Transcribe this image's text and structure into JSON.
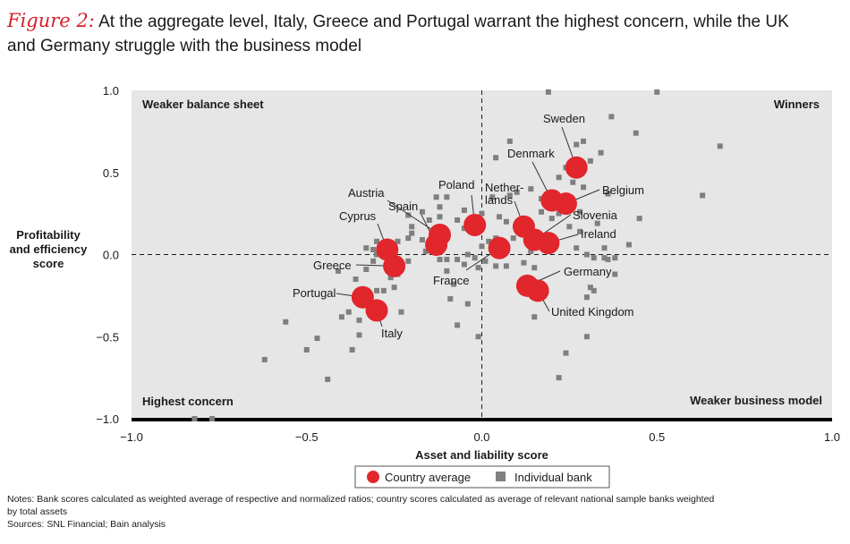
{
  "figure": {
    "label": "Figure 2:",
    "title_line1": "At the aggregate level, Italy, Greece and Portugal warrant the highest concern, while the UK",
    "title_line2": "and Germany struggle with the business model"
  },
  "chart_data": {
    "type": "scatter",
    "xlabel": "Asset and liability score",
    "ylabel": [
      "Profitability",
      "and efficiency",
      "score"
    ],
    "xlim": [
      -1.0,
      1.0
    ],
    "ylim": [
      -1.0,
      1.0
    ],
    "xticks": [
      -1.0,
      -0.5,
      0.0,
      0.5,
      1.0
    ],
    "xtick_labels": [
      "−1.0",
      "−0.5",
      "0.0",
      "0.5",
      "1.0"
    ],
    "yticks": [
      1.0,
      0.5,
      0.0,
      -0.5,
      -1.0
    ],
    "ytick_labels": [
      "1.0",
      "0.5",
      "0.0",
      "−0.5",
      "−1.0"
    ],
    "quadrant_labels": {
      "top_left": "Weaker balance sheet",
      "top_right": "Winners",
      "bottom_left": "Highest concern",
      "bottom_right": "Weaker business model"
    },
    "legend": [
      {
        "name": "Country average",
        "color": "#e1262c",
        "marker": "circle"
      },
      {
        "name": "Individual bank",
        "color": "#808080",
        "marker": "square"
      }
    ],
    "series": [
      {
        "name": "Country average",
        "points": [
          {
            "label": "Sweden",
            "x": 0.27,
            "y": 0.53
          },
          {
            "label": "Denmark",
            "x": 0.2,
            "y": 0.33
          },
          {
            "label": "Belgium",
            "x": 0.24,
            "y": 0.31
          },
          {
            "label": "Netherlands",
            "x": 0.12,
            "y": 0.17
          },
          {
            "label": "Slovenia",
            "x": 0.15,
            "y": 0.09
          },
          {
            "label": "Ireland",
            "x": 0.19,
            "y": 0.07
          },
          {
            "label": "Poland",
            "x": -0.02,
            "y": 0.18
          },
          {
            "label": "Austria",
            "x": -0.12,
            "y": 0.12
          },
          {
            "label": "Spain",
            "x": -0.13,
            "y": 0.06
          },
          {
            "label": "France",
            "x": 0.05,
            "y": 0.04
          },
          {
            "label": "Cyprus",
            "x": -0.27,
            "y": 0.03
          },
          {
            "label": "Greece",
            "x": -0.25,
            "y": -0.07
          },
          {
            "label": "Germany",
            "x": 0.13,
            "y": -0.19
          },
          {
            "label": "United Kingdom",
            "x": 0.16,
            "y": -0.22
          },
          {
            "label": "Portugal",
            "x": -0.34,
            "y": -0.26
          },
          {
            "label": "Italy",
            "x": -0.3,
            "y": -0.34
          }
        ]
      },
      {
        "name": "Individual bank",
        "points": [
          [
            0.19,
            0.99
          ],
          [
            0.5,
            0.99
          ],
          [
            0.37,
            0.84
          ],
          [
            0.44,
            0.74
          ],
          [
            0.68,
            0.66
          ],
          [
            0.29,
            0.69
          ],
          [
            0.27,
            0.67
          ],
          [
            0.08,
            0.69
          ],
          [
            0.04,
            0.59
          ],
          [
            0.34,
            0.62
          ],
          [
            0.31,
            0.57
          ],
          [
            0.24,
            0.53
          ],
          [
            0.22,
            0.47
          ],
          [
            0.26,
            0.44
          ],
          [
            0.29,
            0.41
          ],
          [
            0.36,
            0.37
          ],
          [
            0.63,
            0.36
          ],
          [
            0.14,
            0.4
          ],
          [
            0.1,
            0.38
          ],
          [
            0.17,
            0.34
          ],
          [
            0.03,
            0.35
          ],
          [
            0.08,
            0.36
          ],
          [
            0.19,
            0.29
          ],
          [
            0.28,
            0.26
          ],
          [
            0.22,
            0.25
          ],
          [
            0.2,
            0.22
          ],
          [
            0.17,
            0.26
          ],
          [
            0.45,
            0.22
          ],
          [
            0.33,
            0.19
          ],
          [
            0.25,
            0.17
          ],
          [
            0.28,
            0.14
          ],
          [
            0.07,
            0.2
          ],
          [
            0.05,
            0.23
          ],
          [
            0.0,
            0.25
          ],
          [
            -0.05,
            0.27
          ],
          [
            -0.13,
            0.35
          ],
          [
            -0.1,
            0.35
          ],
          [
            -0.12,
            0.29
          ],
          [
            -0.17,
            0.26
          ],
          [
            -0.21,
            0.24
          ],
          [
            -0.15,
            0.21
          ],
          [
            -0.2,
            0.17
          ],
          [
            -0.2,
            0.13
          ],
          [
            -0.12,
            0.23
          ],
          [
            -0.07,
            0.21
          ],
          [
            -0.05,
            0.16
          ],
          [
            -0.14,
            0.07
          ],
          [
            -0.17,
            0.09
          ],
          [
            -0.21,
            0.1
          ],
          [
            -0.24,
            0.08
          ],
          [
            -0.3,
            0.08
          ],
          [
            -0.33,
            0.04
          ],
          [
            -0.31,
            0.03
          ],
          [
            -0.3,
            0.0
          ],
          [
            -0.31,
            -0.04
          ],
          [
            -0.26,
            -0.04
          ],
          [
            -0.21,
            -0.04
          ],
          [
            -0.16,
            0.02
          ],
          [
            -0.12,
            -0.03
          ],
          [
            -0.1,
            -0.03
          ],
          [
            -0.07,
            -0.03
          ],
          [
            -0.05,
            -0.06
          ],
          [
            -0.04,
            0.0
          ],
          [
            -0.02,
            -0.02
          ],
          [
            -0.01,
            -0.08
          ],
          [
            0.01,
            -0.04
          ],
          [
            0.0,
            0.05
          ],
          [
            0.02,
            0.08
          ],
          [
            0.04,
            0.1
          ],
          [
            0.09,
            0.1
          ],
          [
            0.04,
            -0.07
          ],
          [
            0.07,
            -0.07
          ],
          [
            0.12,
            -0.05
          ],
          [
            0.14,
            0.02
          ],
          [
            0.15,
            -0.08
          ],
          [
            0.27,
            0.04
          ],
          [
            0.3,
            0.0
          ],
          [
            0.32,
            -0.02
          ],
          [
            0.35,
            -0.02
          ],
          [
            0.38,
            -0.02
          ],
          [
            0.35,
            0.04
          ],
          [
            0.36,
            -0.03
          ],
          [
            0.42,
            0.06
          ],
          [
            0.38,
            -0.12
          ],
          [
            0.31,
            -0.2
          ],
          [
            0.3,
            -0.26
          ],
          [
            0.32,
            -0.22
          ],
          [
            0.3,
            -0.5
          ],
          [
            0.24,
            -0.6
          ],
          [
            0.22,
            -0.75
          ],
          [
            0.11,
            -0.18
          ],
          [
            0.15,
            -0.38
          ],
          [
            -0.1,
            -0.1
          ],
          [
            -0.09,
            -0.27
          ],
          [
            -0.04,
            -0.3
          ],
          [
            -0.07,
            -0.43
          ],
          [
            -0.01,
            -0.5
          ],
          [
            -0.08,
            -0.18
          ],
          [
            -0.24,
            -0.12
          ],
          [
            -0.25,
            -0.2
          ],
          [
            -0.26,
            -0.14
          ],
          [
            -0.36,
            -0.15
          ],
          [
            -0.41,
            -0.1
          ],
          [
            -0.33,
            -0.09
          ],
          [
            -0.3,
            -0.22
          ],
          [
            -0.28,
            -0.22
          ],
          [
            -0.36,
            -0.26
          ],
          [
            -0.38,
            -0.35
          ],
          [
            -0.35,
            -0.4
          ],
          [
            -0.4,
            -0.38
          ],
          [
            -0.23,
            -0.35
          ],
          [
            -0.35,
            -0.49
          ],
          [
            -0.37,
            -0.58
          ],
          [
            -0.47,
            -0.51
          ],
          [
            -0.5,
            -0.58
          ],
          [
            -0.44,
            -0.76
          ],
          [
            -0.56,
            -0.41
          ],
          [
            -0.62,
            -0.64
          ],
          [
            -0.82,
            -1.0
          ],
          [
            -0.77,
            -1.0
          ]
        ]
      }
    ]
  },
  "notes": {
    "line1": "Notes: Bank scores calculated as weighted average of respective and normalized ratios; country scores calculated as average of relevant national sample banks weighted",
    "line2": "by total assets",
    "line3": "Sources: SNL Financial; Bain analysis"
  }
}
